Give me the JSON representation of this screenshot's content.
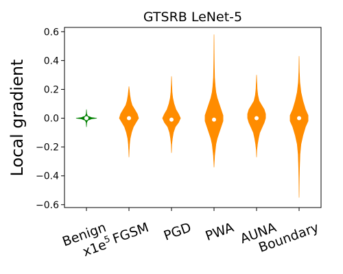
{
  "chart_data": {
    "type": "violin",
    "title": "GTSRB LeNet-5",
    "xlabel": "",
    "ylabel": "Local gradient",
    "ylim": [
      -0.62,
      0.63
    ],
    "yticks": [
      "0.6",
      "0.4",
      "0.2",
      "0.0",
      "−0.2",
      "−0.4",
      "−0.6"
    ],
    "ytick_values": [
      0.6,
      0.4,
      0.2,
      0.0,
      -0.2,
      -0.4,
      -0.6
    ],
    "grid": false,
    "categories": [
      "Benign\nx1e5",
      "FGSM",
      "PGD",
      "PWA",
      "AUNA",
      "Boundary"
    ],
    "series": [
      {
        "category": "Benign\nx1e5",
        "color": "#008000",
        "median": 0.0,
        "profile": [
          [
            -0.06,
            0.0
          ],
          [
            -0.03,
            0.5
          ],
          [
            -0.015,
            2
          ],
          [
            -0.005,
            8
          ],
          [
            0.0,
            16
          ],
          [
            0.005,
            8
          ],
          [
            0.015,
            2
          ],
          [
            0.03,
            0.5
          ],
          [
            0.06,
            0.0
          ]
        ]
      },
      {
        "category": "FGSM",
        "color": "#ff8c00",
        "median": 0.0,
        "profile": [
          [
            -0.27,
            0.0
          ],
          [
            -0.22,
            0.5
          ],
          [
            -0.18,
            1
          ],
          [
            -0.14,
            2
          ],
          [
            -0.1,
            4
          ],
          [
            -0.06,
            7
          ],
          [
            -0.03,
            11
          ],
          [
            0.0,
            15
          ],
          [
            0.03,
            13
          ],
          [
            0.06,
            9
          ],
          [
            0.09,
            5
          ],
          [
            0.12,
            3
          ],
          [
            0.16,
            1.5
          ],
          [
            0.2,
            0.5
          ],
          [
            0.22,
            0.0
          ]
        ]
      },
      {
        "category": "PGD",
        "color": "#ff8c00",
        "median": -0.01,
        "profile": [
          [
            -0.24,
            0.0
          ],
          [
            -0.18,
            0.5
          ],
          [
            -0.14,
            1.5
          ],
          [
            -0.1,
            3
          ],
          [
            -0.06,
            6
          ],
          [
            -0.03,
            11
          ],
          [
            0.0,
            14
          ],
          [
            0.03,
            11
          ],
          [
            0.06,
            7
          ],
          [
            0.1,
            4
          ],
          [
            0.14,
            2
          ],
          [
            0.18,
            1
          ],
          [
            0.23,
            0.5
          ],
          [
            0.29,
            0.0
          ]
        ]
      },
      {
        "category": "PWA",
        "color": "#ff8c00",
        "median": -0.01,
        "profile": [
          [
            -0.34,
            0.0
          ],
          [
            -0.3,
            0.5
          ],
          [
            -0.26,
            1
          ],
          [
            -0.22,
            2
          ],
          [
            -0.18,
            3
          ],
          [
            -0.14,
            5
          ],
          [
            -0.1,
            8
          ],
          [
            -0.06,
            11
          ],
          [
            -0.02,
            14
          ],
          [
            0.02,
            14
          ],
          [
            0.06,
            11
          ],
          [
            0.1,
            8
          ],
          [
            0.14,
            5
          ],
          [
            0.18,
            3
          ],
          [
            0.22,
            2
          ],
          [
            0.28,
            1
          ],
          [
            0.35,
            0.6
          ],
          [
            0.45,
            0.3
          ],
          [
            0.58,
            0.0
          ]
        ]
      },
      {
        "category": "AUNA",
        "color": "#ff8c00",
        "median": 0.0,
        "profile": [
          [
            -0.27,
            0.0
          ],
          [
            -0.22,
            0.5
          ],
          [
            -0.18,
            1.5
          ],
          [
            -0.14,
            3
          ],
          [
            -0.1,
            5
          ],
          [
            -0.06,
            9
          ],
          [
            -0.03,
            12
          ],
          [
            0.0,
            14
          ],
          [
            0.03,
            14
          ],
          [
            0.06,
            12
          ],
          [
            0.09,
            8
          ],
          [
            0.12,
            4
          ],
          [
            0.16,
            2
          ],
          [
            0.2,
            1
          ],
          [
            0.25,
            0.5
          ],
          [
            0.3,
            0.0
          ]
        ]
      },
      {
        "category": "Boundary",
        "color": "#ff8c00",
        "median": 0.0,
        "profile": [
          [
            -0.55,
            0.0
          ],
          [
            -0.45,
            0.3
          ],
          [
            -0.35,
            0.7
          ],
          [
            -0.25,
            1.5
          ],
          [
            -0.18,
            3
          ],
          [
            -0.12,
            6
          ],
          [
            -0.06,
            10
          ],
          [
            -0.02,
            14
          ],
          [
            0.02,
            14
          ],
          [
            0.06,
            10
          ],
          [
            0.12,
            6
          ],
          [
            0.18,
            3
          ],
          [
            0.25,
            1.2
          ],
          [
            0.32,
            0.5
          ],
          [
            0.43,
            0.0
          ]
        ]
      }
    ]
  }
}
